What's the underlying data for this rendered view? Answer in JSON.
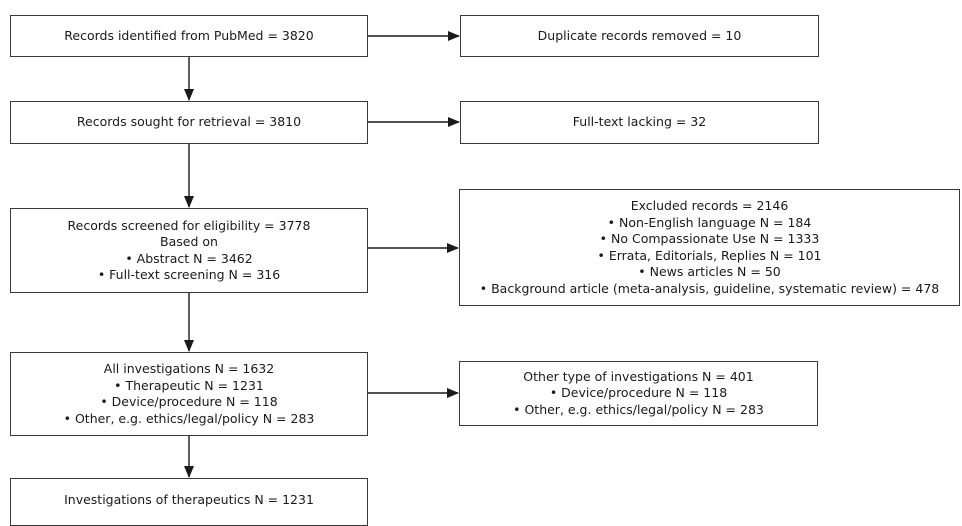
{
  "boxes": {
    "identified": {
      "lines": [
        "Records identified from PubMed = 3820"
      ]
    },
    "duplicates": {
      "lines": [
        "Duplicate records removed = 10"
      ]
    },
    "sought": {
      "lines": [
        "Records sought for retrieval = 3810"
      ]
    },
    "fulltext_lacking": {
      "lines": [
        "Full-text lacking = 32"
      ]
    },
    "screened": {
      "lines": [
        "Records screened for eligibility = 3778",
        "Based on",
        "• Abstract N = 3462",
        "• Full-text screening N = 316"
      ]
    },
    "excluded": {
      "lines": [
        "Excluded records = 2146",
        "• Non-English language N = 184",
        "• No Compassionate Use N = 1333",
        "• Errata, Editorials, Replies N = 101",
        "• News articles N = 50",
        "• Background article (meta-analysis, guideline, systematic review) = 478"
      ]
    },
    "all_investigations": {
      "lines": [
        "All investigations N = 1632",
        "• Therapeutic N = 1231",
        "• Device/procedure N = 118",
        "• Other, e.g. ethics/legal/policy N = 283"
      ]
    },
    "other_investigations": {
      "lines": [
        "Other type of investigations N = 401",
        "• Device/procedure N = 118",
        "• Other, e.g. ethics/legal/policy N = 283"
      ]
    },
    "therapeutics": {
      "lines": [
        "Investigations of therapeutics N = 1231"
      ]
    }
  },
  "colors": {
    "stroke": "#3a3a3a"
  }
}
